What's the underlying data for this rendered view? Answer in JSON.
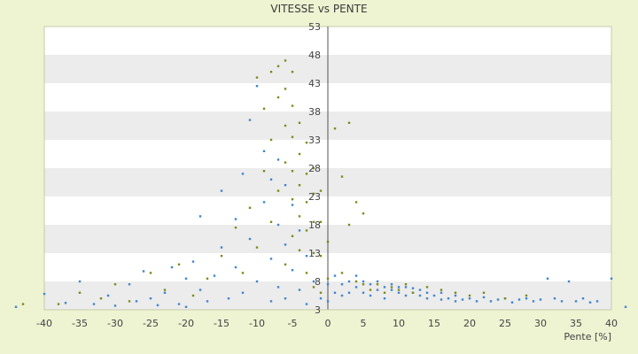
{
  "chart_data": {
    "type": "scatter",
    "title": "VITESSE vs PENTE",
    "xlabel": "Pente [%]",
    "ylabel": "",
    "xlim": [
      -40,
      40
    ],
    "ylim": [
      3,
      53
    ],
    "x_ticks": [
      "-40",
      "-35",
      "-30",
      "-25",
      "-20",
      "-15",
      "-10",
      "-5",
      "0",
      "5",
      "10",
      "15",
      "20",
      "25",
      "30",
      "35",
      "40"
    ],
    "y_ticks": [
      "3",
      "8",
      "13",
      "18",
      "23",
      "28",
      "33",
      "38",
      "43",
      "48",
      "53"
    ],
    "grid": "horizontal alternating bands",
    "legend": "none",
    "series": [
      {
        "color": "#3f86d0",
        "points": [
          [
            -44,
            3.5
          ],
          [
            -40,
            5.8
          ],
          [
            -37,
            4.2
          ],
          [
            -35,
            8.0
          ],
          [
            -33,
            4.0
          ],
          [
            -31,
            5.5
          ],
          [
            -30,
            3.7
          ],
          [
            -28,
            7.5
          ],
          [
            -27,
            4.5
          ],
          [
            -26,
            9.8
          ],
          [
            -25,
            5.0
          ],
          [
            -24,
            3.8
          ],
          [
            -23,
            6.0
          ],
          [
            -22,
            10.5
          ],
          [
            -21,
            4.0
          ],
          [
            -20,
            8.5
          ],
          [
            -20,
            3.5
          ],
          [
            -19,
            11.5
          ],
          [
            -18,
            19.5
          ],
          [
            -18,
            6.5
          ],
          [
            -17,
            4.5
          ],
          [
            -16,
            9.0
          ],
          [
            -15,
            24.0
          ],
          [
            -15,
            14.0
          ],
          [
            -14,
            5.0
          ],
          [
            -13,
            19.0
          ],
          [
            -13,
            10.5
          ],
          [
            -12,
            27.0
          ],
          [
            -12,
            6.0
          ],
          [
            -11,
            36.5
          ],
          [
            -11,
            15.5
          ],
          [
            -10,
            42.5
          ],
          [
            -10,
            8.0
          ],
          [
            -9,
            31.0
          ],
          [
            -9,
            22.0
          ],
          [
            -8,
            26.0
          ],
          [
            -8,
            12.0
          ],
          [
            -8,
            4.5
          ],
          [
            -7,
            29.5
          ],
          [
            -7,
            18.0
          ],
          [
            -7,
            7.0
          ],
          [
            -6,
            25.0
          ],
          [
            -6,
            14.5
          ],
          [
            -6,
            5.0
          ],
          [
            -5,
            21.5
          ],
          [
            -5,
            10.0
          ],
          [
            -4,
            17.0
          ],
          [
            -4,
            6.5
          ],
          [
            -3,
            12.5
          ],
          [
            -3,
            4.0
          ],
          [
            -2,
            8.0
          ],
          [
            -1,
            5.0
          ],
          [
            0,
            4.5
          ],
          [
            0,
            7.5
          ],
          [
            1,
            6.0
          ],
          [
            1,
            9.0
          ],
          [
            2,
            7.5
          ],
          [
            2,
            5.5
          ],
          [
            3,
            8.0
          ],
          [
            3,
            6.0
          ],
          [
            4,
            7.0
          ],
          [
            4,
            9.0
          ],
          [
            5,
            6.0
          ],
          [
            5,
            8.0
          ],
          [
            6,
            7.5
          ],
          [
            6,
            5.5
          ],
          [
            7,
            6.5
          ],
          [
            7,
            8.0
          ],
          [
            8,
            7.0
          ],
          [
            8,
            5.0
          ],
          [
            9,
            6.5
          ],
          [
            9,
            7.5
          ],
          [
            10,
            6.0
          ],
          [
            10,
            7.0
          ],
          [
            11,
            5.5
          ],
          [
            11,
            7.0
          ],
          [
            12,
            6.0
          ],
          [
            12,
            6.8
          ],
          [
            13,
            5.5
          ],
          [
            13,
            6.5
          ],
          [
            14,
            5.0
          ],
          [
            14,
            6.0
          ],
          [
            15,
            5.5
          ],
          [
            16,
            4.8
          ],
          [
            16,
            6.0
          ],
          [
            17,
            5.0
          ],
          [
            18,
            4.5
          ],
          [
            18,
            5.5
          ],
          [
            19,
            4.8
          ],
          [
            20,
            5.0
          ],
          [
            21,
            4.5
          ],
          [
            22,
            5.2
          ],
          [
            23,
            4.5
          ],
          [
            24,
            4.8
          ],
          [
            25,
            5.0
          ],
          [
            26,
            4.3
          ],
          [
            27,
            4.8
          ],
          [
            28,
            5.0
          ],
          [
            29,
            4.5
          ],
          [
            30,
            4.8
          ],
          [
            31,
            8.5
          ],
          [
            32,
            5.0
          ],
          [
            33,
            4.5
          ],
          [
            34,
            8.0
          ],
          [
            35,
            4.5
          ],
          [
            36,
            5.0
          ],
          [
            37,
            4.3
          ],
          [
            38,
            4.5
          ],
          [
            40,
            8.5
          ],
          [
            42,
            3.5
          ]
        ]
      },
      {
        "color": "#7e8a1a",
        "points": [
          [
            -38,
            4.0
          ],
          [
            -35,
            6.0
          ],
          [
            -32,
            5.0
          ],
          [
            -30,
            7.5
          ],
          [
            -28,
            4.5
          ],
          [
            -25,
            9.5
          ],
          [
            -23,
            6.5
          ],
          [
            -21,
            11.0
          ],
          [
            -19,
            5.5
          ],
          [
            -17,
            8.5
          ],
          [
            -15,
            12.5
          ],
          [
            -13,
            17.5
          ],
          [
            -12,
            9.5
          ],
          [
            -11,
            21.0
          ],
          [
            -10,
            44.0
          ],
          [
            -10,
            14.0
          ],
          [
            -9,
            38.5
          ],
          [
            -9,
            27.5
          ],
          [
            -8,
            45.0
          ],
          [
            -8,
            33.0
          ],
          [
            -8,
            18.5
          ],
          [
            -7,
            46.0
          ],
          [
            -7,
            40.5
          ],
          [
            -7,
            24.0
          ],
          [
            -6,
            47.0
          ],
          [
            -6,
            42.0
          ],
          [
            -6,
            35.5
          ],
          [
            -6,
            29.0
          ],
          [
            -6,
            11.0
          ],
          [
            -5,
            45.0
          ],
          [
            -5,
            39.0
          ],
          [
            -5,
            33.5
          ],
          [
            -5,
            27.5
          ],
          [
            -5,
            22.5
          ],
          [
            -5,
            16.0
          ],
          [
            -4,
            36.0
          ],
          [
            -4,
            30.5
          ],
          [
            -4,
            25.0
          ],
          [
            -4,
            19.5
          ],
          [
            -4,
            13.5
          ],
          [
            -3,
            32.5
          ],
          [
            -3,
            27.0
          ],
          [
            -3,
            22.0
          ],
          [
            -3,
            17.0
          ],
          [
            -3,
            9.5
          ],
          [
            -2,
            28.0
          ],
          [
            -2,
            23.5
          ],
          [
            -2,
            18.5
          ],
          [
            -2,
            13.0
          ],
          [
            -2,
            7.0
          ],
          [
            -1,
            24.0
          ],
          [
            -1,
            18.5
          ],
          [
            -1,
            12.5
          ],
          [
            -1,
            6.0
          ],
          [
            0,
            15.0
          ],
          [
            0,
            8.5
          ],
          [
            1,
            35.0
          ],
          [
            2,
            26.5
          ],
          [
            2,
            9.5
          ],
          [
            3,
            36.0
          ],
          [
            3,
            18.0
          ],
          [
            4,
            22.0
          ],
          [
            4,
            8.0
          ],
          [
            5,
            20.0
          ],
          [
            5,
            7.5
          ],
          [
            6,
            6.5
          ],
          [
            7,
            7.5
          ],
          [
            8,
            6.0
          ],
          [
            9,
            7.0
          ],
          [
            10,
            6.5
          ],
          [
            11,
            7.5
          ],
          [
            12,
            6.0
          ],
          [
            14,
            7.0
          ],
          [
            16,
            6.5
          ],
          [
            18,
            6.0
          ],
          [
            20,
            5.5
          ],
          [
            22,
            6.0
          ],
          [
            25,
            5.0
          ],
          [
            28,
            5.5
          ],
          [
            -43,
            4.0
          ]
        ]
      }
    ]
  }
}
